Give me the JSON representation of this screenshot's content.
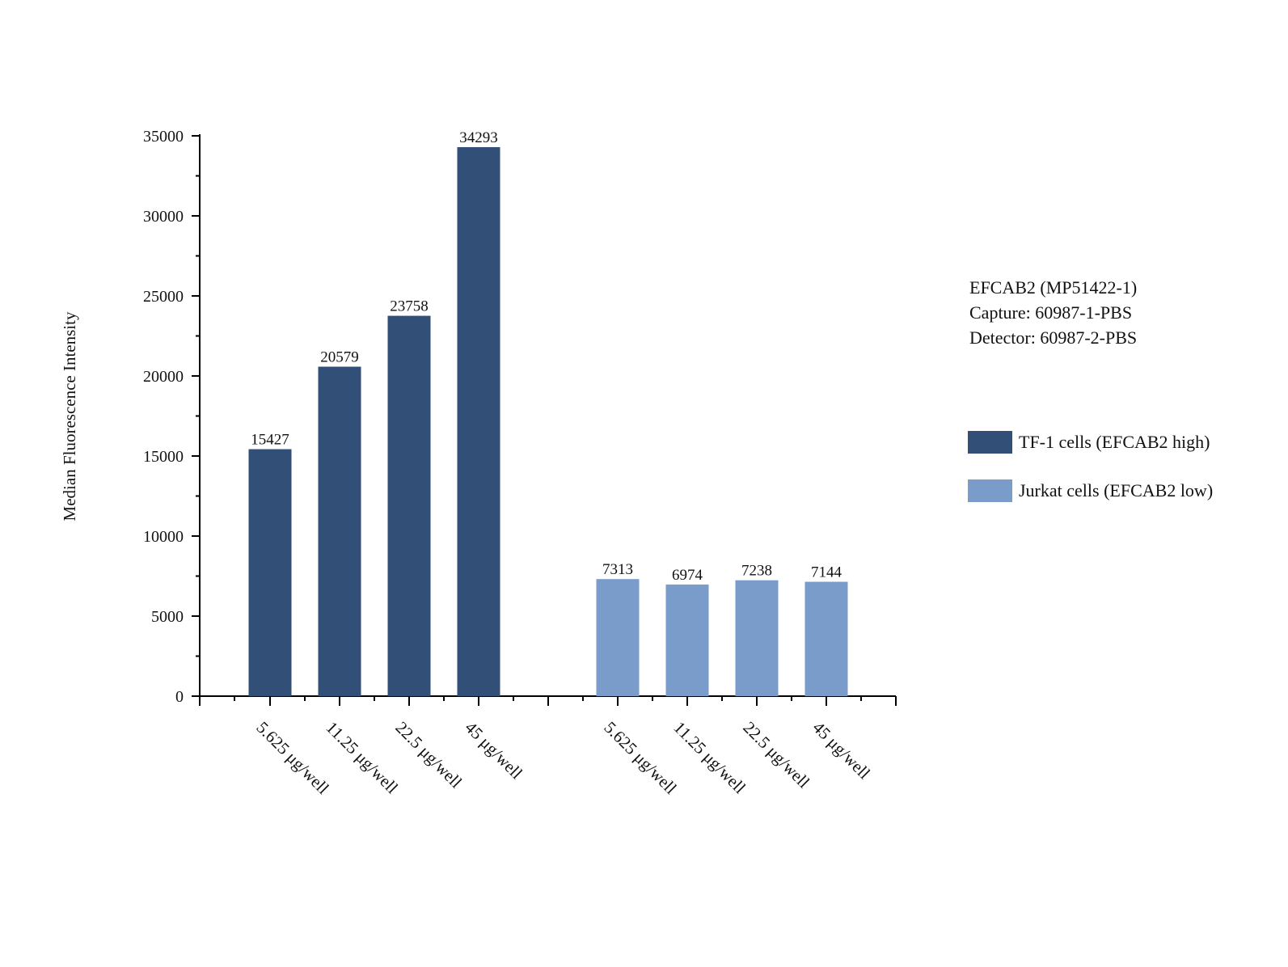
{
  "chart_data": {
    "type": "bar",
    "ylabel": "Median Fluorescence Intensity",
    "ylim": [
      0,
      35000
    ],
    "yticks": [
      0,
      5000,
      10000,
      15000,
      20000,
      25000,
      30000,
      35000
    ],
    "groups": [
      {
        "name": "TF-1 cells (EFCAB2 high)",
        "color": "#314f77",
        "categories": [
          "5.625 μg/well",
          "11.25 μg/well",
          "22.5 μg/well",
          "45 μg/well"
        ],
        "values": [
          15427,
          20579,
          23758,
          34293
        ]
      },
      {
        "name": "Jurkat cells (EFCAB2 low)",
        "color": "#7a9ccb",
        "categories": [
          "5.625 μg/well",
          "11.25 μg/well",
          "22.5 μg/well",
          "45 μg/well"
        ],
        "values": [
          7313,
          6974,
          7238,
          7144
        ]
      }
    ],
    "legend_position": "right",
    "grid": false
  },
  "info_text": {
    "line1": "EFCAB2 (MP51422-1)",
    "line2": "Capture: 60987-1-PBS",
    "line3": "Detector: 60987-2-PBS"
  },
  "legend": {
    "items": [
      {
        "label": "TF-1 cells (EFCAB2 high)",
        "color": "#314f77"
      },
      {
        "label": "Jurkat cells (EFCAB2 low)",
        "color": "#7a9ccb"
      }
    ]
  }
}
